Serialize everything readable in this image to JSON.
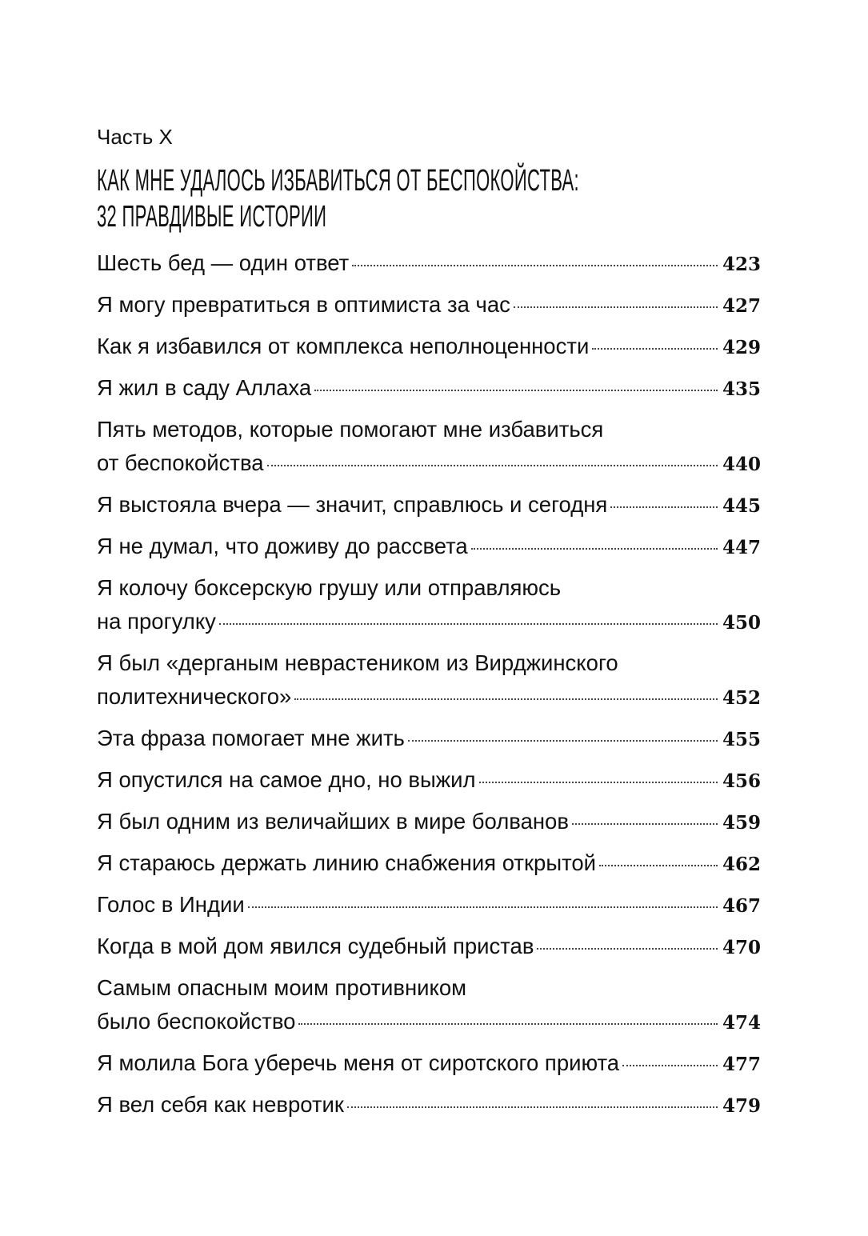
{
  "part_label": "Часть X",
  "heading_lines": [
    "КАК МНЕ УДАЛОСЬ ИЗБАВИТЬСЯ ОТ БЕСПОКОЙСТВА:",
    "32 ПРАВДИВЫЕ ИСТОРИИ"
  ],
  "entries": [
    {
      "lines": [
        "Шесть бед — один ответ"
      ],
      "page": "423"
    },
    {
      "lines": [
        "Я могу превратиться в оптимиста за час"
      ],
      "page": "427"
    },
    {
      "lines": [
        "Как я избавился от комплекса неполноценности"
      ],
      "page": "429"
    },
    {
      "lines": [
        "Я жил в саду Аллаха"
      ],
      "page": "435"
    },
    {
      "lines": [
        "Пять методов, которые помогают мне избавиться",
        "от беспокойства"
      ],
      "page": "440"
    },
    {
      "lines": [
        "Я выстояла вчера — значит, справлюсь и сегодня"
      ],
      "page": "445"
    },
    {
      "lines": [
        "Я не думал, что доживу до рассвета"
      ],
      "page": "447"
    },
    {
      "lines": [
        "Я колочу боксерскую грушу или отправляюсь",
        "на прогулку"
      ],
      "page": "450"
    },
    {
      "lines": [
        "Я был «дерганым неврастеником из Вирджинского",
        "политехнического»"
      ],
      "page": "452"
    },
    {
      "lines": [
        "Эта фраза помогает мне жить"
      ],
      "page": "455"
    },
    {
      "lines": [
        "Я опустился на самое дно, но выжил"
      ],
      "page": "456"
    },
    {
      "lines": [
        "Я был одним из величайших в мире болванов"
      ],
      "page": "459"
    },
    {
      "lines": [
        "Я стараюсь держать линию снабжения открытой"
      ],
      "page": "462"
    },
    {
      "lines": [
        "Голос в Индии"
      ],
      "page": "467"
    },
    {
      "lines": [
        "Когда в мой дом явился судебный пристав"
      ],
      "page": "470"
    },
    {
      "lines": [
        "Самым опасным моим противником",
        "было беспокойство"
      ],
      "page": "474"
    },
    {
      "lines": [
        "Я молила Бога уберечь меня от сиротского приюта"
      ],
      "page": "477"
    },
    {
      "lines": [
        "Я вел себя как невротик"
      ],
      "page": "479"
    }
  ]
}
